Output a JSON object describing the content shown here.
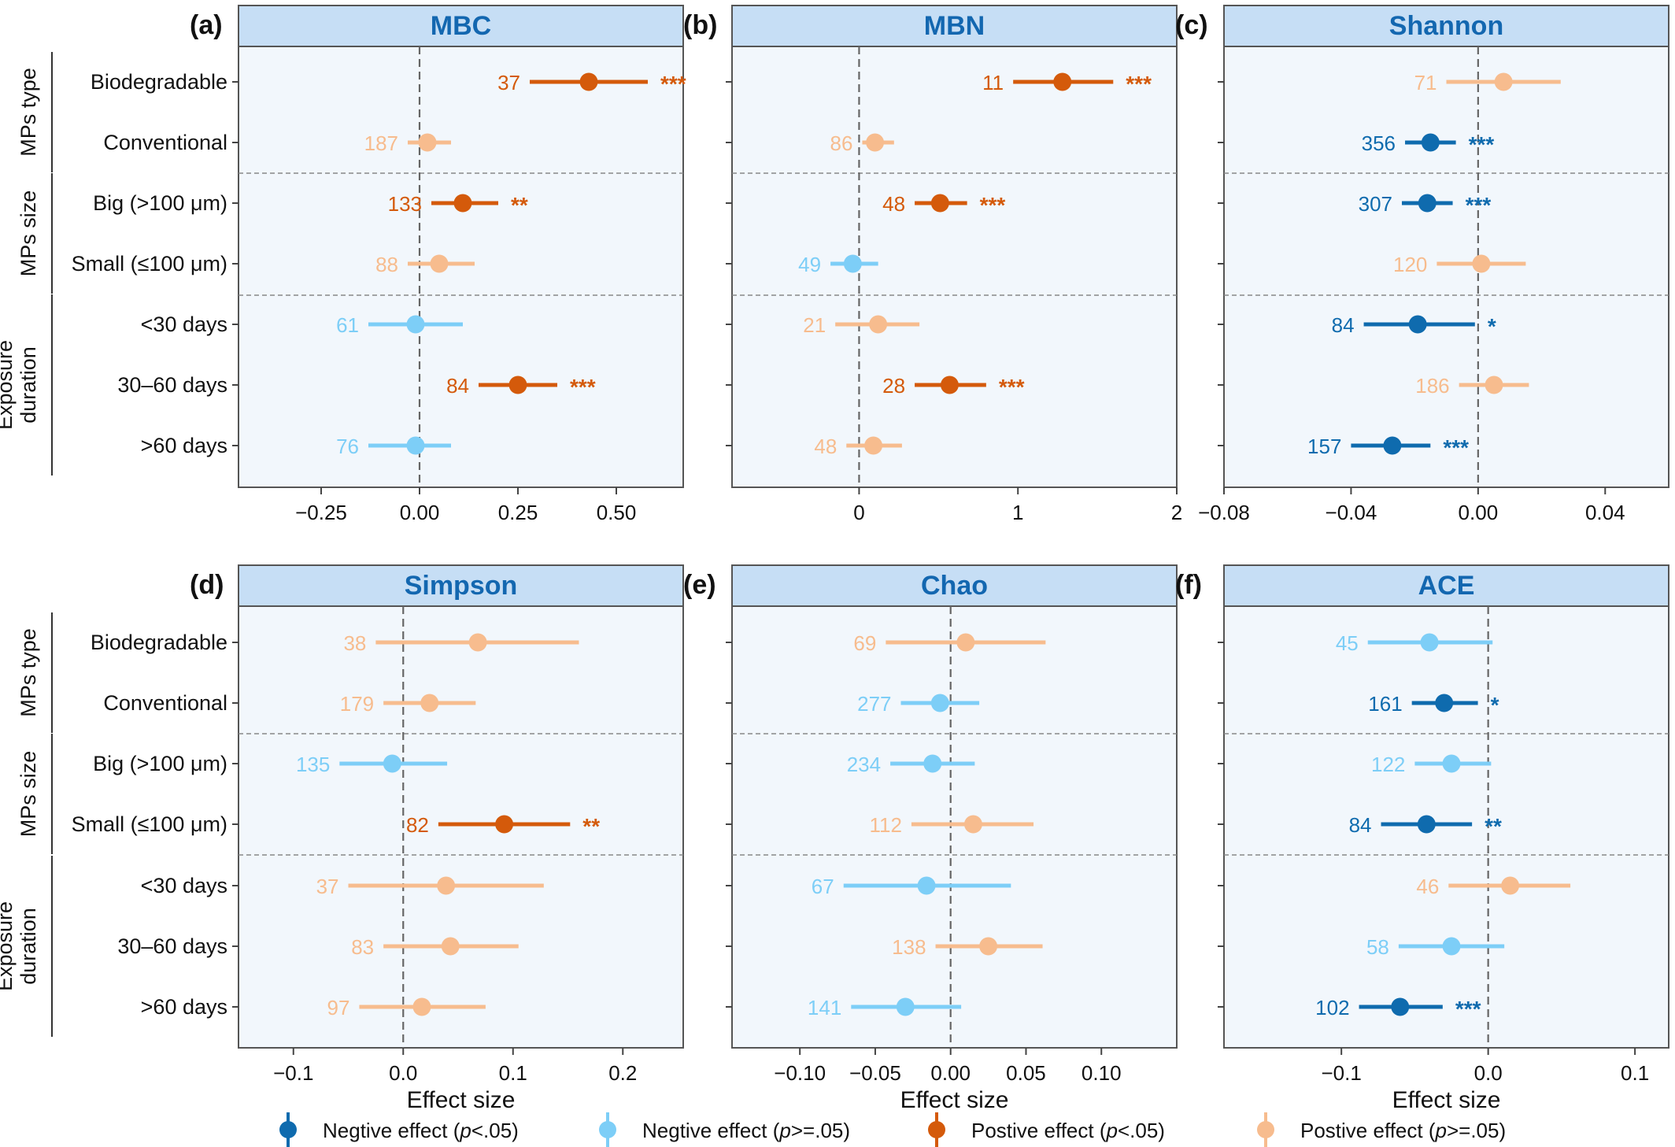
{
  "colors": {
    "neg_sig": "#0F6BAE",
    "neg_ns": "#7DCEF7",
    "pos_sig": "#D45A0B",
    "pos_ns": "#F7BC8E",
    "strip_bg": "#C6DEF5",
    "strip_text": "#1367B0",
    "panel_bg": "#F2F7FC"
  },
  "row_labels": [
    "Biodegradable",
    "Conventional",
    "Big (>100 μm)",
    "Small (≤100 μm)",
    "<30 days",
    "30–60 days",
    ">60 days"
  ],
  "group_labels": [
    {
      "lines": [
        "MPs type"
      ],
      "rows": [
        0,
        1
      ]
    },
    {
      "lines": [
        "MPs size"
      ],
      "rows": [
        2,
        3
      ]
    },
    {
      "lines": [
        "Exposure",
        "duration"
      ],
      "rows": [
        4,
        5,
        6
      ]
    }
  ],
  "x_axis_title": "Effect size",
  "legend": [
    {
      "label": "Negtive effect (",
      "italic": "p",
      "suffix": "<.05)",
      "category": "neg_sig"
    },
    {
      "label": "Negtive effect (",
      "italic": "p",
      "suffix": ">=.05)",
      "category": "neg_ns"
    },
    {
      "label": "Postive effect (",
      "italic": "p",
      "suffix": "<.05)",
      "category": "pos_sig"
    },
    {
      "label": "Postive effect (",
      "italic": "p",
      "suffix": ">=.05)",
      "category": "pos_ns"
    }
  ],
  "chart_data": [
    {
      "type": "scatter",
      "tag": "(a)",
      "title": "MBC",
      "xlim": [
        -0.46,
        0.67
      ],
      "xticks": [
        -0.25,
        0.0,
        0.25,
        0.5
      ],
      "xtick_labels": [
        "−0.25",
        "0.00",
        "0.25",
        "0.50"
      ],
      "show_xtitle": false,
      "points": [
        {
          "row": "Biodegradable",
          "estimate": 0.43,
          "ci": [
            0.28,
            0.58
          ],
          "n": "37",
          "sig": "***",
          "category": "pos_sig"
        },
        {
          "row": "Conventional",
          "estimate": 0.02,
          "ci": [
            -0.03,
            0.08
          ],
          "n": "187",
          "sig": "",
          "category": "pos_ns"
        },
        {
          "row": "Big (>100 μm)",
          "estimate": 0.11,
          "ci": [
            0.03,
            0.2
          ],
          "n": "133",
          "sig": "**",
          "category": "pos_sig"
        },
        {
          "row": "Small (≤100 μm)",
          "estimate": 0.05,
          "ci": [
            -0.03,
            0.14
          ],
          "n": "88",
          "sig": "",
          "category": "pos_ns"
        },
        {
          "row": "<30 days",
          "estimate": -0.01,
          "ci": [
            -0.13,
            0.11
          ],
          "n": "61",
          "sig": "",
          "category": "neg_ns"
        },
        {
          "row": "30–60 days",
          "estimate": 0.25,
          "ci": [
            0.15,
            0.35
          ],
          "n": "84",
          "sig": "***",
          "category": "pos_sig"
        },
        {
          "row": ">60 days",
          "estimate": -0.01,
          "ci": [
            -0.13,
            0.08
          ],
          "n": "76",
          "sig": "",
          "category": "neg_ns"
        }
      ]
    },
    {
      "type": "scatter",
      "tag": "(b)",
      "title": "MBN",
      "xlim": [
        -0.8,
        2.0
      ],
      "xticks": [
        0,
        1,
        2
      ],
      "xtick_labels": [
        "0",
        "1",
        "2"
      ],
      "show_xtitle": false,
      "points": [
        {
          "row": "Biodegradable",
          "estimate": 1.28,
          "ci": [
            0.97,
            1.6
          ],
          "n": "11",
          "sig": "***",
          "category": "pos_sig"
        },
        {
          "row": "Conventional",
          "estimate": 0.1,
          "ci": [
            0.02,
            0.22
          ],
          "n": "86",
          "sig": "",
          "category": "pos_ns"
        },
        {
          "row": "Big (>100 μm)",
          "estimate": 0.51,
          "ci": [
            0.35,
            0.68
          ],
          "n": "48",
          "sig": "***",
          "category": "pos_sig"
        },
        {
          "row": "Small (≤100 μm)",
          "estimate": -0.04,
          "ci": [
            -0.18,
            0.12
          ],
          "n": "49",
          "sig": "",
          "category": "neg_ns"
        },
        {
          "row": "<30 days",
          "estimate": 0.12,
          "ci": [
            -0.15,
            0.38
          ],
          "n": "21",
          "sig": "",
          "category": "pos_ns"
        },
        {
          "row": "30–60 days",
          "estimate": 0.57,
          "ci": [
            0.35,
            0.8
          ],
          "n": "28",
          "sig": "***",
          "category": "pos_sig"
        },
        {
          "row": ">60 days",
          "estimate": 0.09,
          "ci": [
            -0.08,
            0.27
          ],
          "n": "48",
          "sig": "",
          "category": "pos_ns"
        }
      ]
    },
    {
      "type": "scatter",
      "tag": "(c)",
      "title": "Shannon",
      "xlim": [
        -0.08,
        0.06
      ],
      "xticks": [
        -0.08,
        -0.04,
        0.0,
        0.04
      ],
      "xtick_labels": [
        "−0.08",
        "−0.04",
        "0.00",
        "0.04"
      ],
      "show_xtitle": false,
      "points": [
        {
          "row": "Biodegradable",
          "estimate": 0.008,
          "ci": [
            -0.01,
            0.026
          ],
          "n": "71",
          "sig": "",
          "category": "pos_ns"
        },
        {
          "row": "Conventional",
          "estimate": -0.015,
          "ci": [
            -0.023,
            -0.007
          ],
          "n": "356",
          "sig": "***",
          "category": "neg_sig"
        },
        {
          "row": "Big (>100 μm)",
          "estimate": -0.016,
          "ci": [
            -0.024,
            -0.008
          ],
          "n": "307",
          "sig": "***",
          "category": "neg_sig"
        },
        {
          "row": "Small (≤100 μm)",
          "estimate": 0.001,
          "ci": [
            -0.013,
            0.015
          ],
          "n": "120",
          "sig": "",
          "category": "pos_ns"
        },
        {
          "row": "<30 days",
          "estimate": -0.019,
          "ci": [
            -0.036,
            -0.001
          ],
          "n": "84",
          "sig": "*",
          "category": "neg_sig"
        },
        {
          "row": "30–60 days",
          "estimate": 0.005,
          "ci": [
            -0.006,
            0.016
          ],
          "n": "186",
          "sig": "",
          "category": "pos_ns"
        },
        {
          "row": ">60 days",
          "estimate": -0.027,
          "ci": [
            -0.04,
            -0.015
          ],
          "n": "157",
          "sig": "***",
          "category": "neg_sig"
        }
      ]
    },
    {
      "type": "scatter",
      "tag": "(d)",
      "title": "Simpson",
      "xlim": [
        -0.15,
        0.255
      ],
      "xticks": [
        -0.1,
        0.0,
        0.1,
        0.2
      ],
      "xtick_labels": [
        "−0.1",
        "0.0",
        "0.1",
        "0.2"
      ],
      "show_xtitle": true,
      "points": [
        {
          "row": "Biodegradable",
          "estimate": 0.068,
          "ci": [
            -0.025,
            0.16
          ],
          "n": "38",
          "sig": "",
          "category": "pos_ns"
        },
        {
          "row": "Conventional",
          "estimate": 0.024,
          "ci": [
            -0.018,
            0.066
          ],
          "n": "179",
          "sig": "",
          "category": "pos_ns"
        },
        {
          "row": "Big (>100 μm)",
          "estimate": -0.01,
          "ci": [
            -0.058,
            0.04
          ],
          "n": "135",
          "sig": "",
          "category": "neg_ns"
        },
        {
          "row": "Small (≤100 μm)",
          "estimate": 0.092,
          "ci": [
            0.032,
            0.152
          ],
          "n": "82",
          "sig": "**",
          "category": "pos_sig"
        },
        {
          "row": "<30 days",
          "estimate": 0.039,
          "ci": [
            -0.05,
            0.128
          ],
          "n": "37",
          "sig": "",
          "category": "pos_ns"
        },
        {
          "row": "30–60 days",
          "estimate": 0.043,
          "ci": [
            -0.018,
            0.105
          ],
          "n": "83",
          "sig": "",
          "category": "pos_ns"
        },
        {
          "row": ">60 days",
          "estimate": 0.017,
          "ci": [
            -0.04,
            0.075
          ],
          "n": "97",
          "sig": "",
          "category": "pos_ns"
        }
      ]
    },
    {
      "type": "scatter",
      "tag": "(e)",
      "title": "Chao",
      "xlim": [
        -0.145,
        0.15
      ],
      "xticks": [
        -0.1,
        -0.05,
        0.0,
        0.05,
        0.1
      ],
      "xtick_labels": [
        "−0.10",
        "−0.05",
        "0.00",
        "0.05",
        "0.10"
      ],
      "show_xtitle": true,
      "points": [
        {
          "row": "Biodegradable",
          "estimate": 0.01,
          "ci": [
            -0.043,
            0.063
          ],
          "n": "69",
          "sig": "",
          "category": "pos_ns"
        },
        {
          "row": "Conventional",
          "estimate": -0.007,
          "ci": [
            -0.033,
            0.019
          ],
          "n": "277",
          "sig": "",
          "category": "neg_ns"
        },
        {
          "row": "Big (>100 μm)",
          "estimate": -0.012,
          "ci": [
            -0.04,
            0.016
          ],
          "n": "234",
          "sig": "",
          "category": "neg_ns"
        },
        {
          "row": "Small (≤100 μm)",
          "estimate": 0.015,
          "ci": [
            -0.026,
            0.055
          ],
          "n": "112",
          "sig": "",
          "category": "pos_ns"
        },
        {
          "row": "<30 days",
          "estimate": -0.016,
          "ci": [
            -0.071,
            0.04
          ],
          "n": "67",
          "sig": "",
          "category": "neg_ns"
        },
        {
          "row": "30–60 days",
          "estimate": 0.025,
          "ci": [
            -0.01,
            0.061
          ],
          "n": "138",
          "sig": "",
          "category": "pos_ns"
        },
        {
          "row": ">60 days",
          "estimate": -0.03,
          "ci": [
            -0.066,
            0.007
          ],
          "n": "141",
          "sig": "",
          "category": "neg_ns"
        }
      ]
    },
    {
      "type": "scatter",
      "tag": "(f)",
      "title": "ACE",
      "xlim": [
        -0.18,
        0.123
      ],
      "xticks": [
        -0.1,
        0.0,
        0.1
      ],
      "xtick_labels": [
        "−0.1",
        "0.0",
        "0.1"
      ],
      "show_xtitle": true,
      "points": [
        {
          "row": "Biodegradable",
          "estimate": -0.04,
          "ci": [
            -0.082,
            0.003
          ],
          "n": "45",
          "sig": "",
          "category": "neg_ns"
        },
        {
          "row": "Conventional",
          "estimate": -0.03,
          "ci": [
            -0.052,
            -0.007
          ],
          "n": "161",
          "sig": "*",
          "category": "neg_sig"
        },
        {
          "row": "Big (>100 μm)",
          "estimate": -0.025,
          "ci": [
            -0.05,
            0.002
          ],
          "n": "122",
          "sig": "",
          "category": "neg_ns"
        },
        {
          "row": "Small (≤100 μm)",
          "estimate": -0.042,
          "ci": [
            -0.073,
            -0.011
          ],
          "n": "84",
          "sig": "**",
          "category": "neg_sig"
        },
        {
          "row": "<30 days",
          "estimate": 0.015,
          "ci": [
            -0.027,
            0.056
          ],
          "n": "46",
          "sig": "",
          "category": "pos_ns"
        },
        {
          "row": "30–60 days",
          "estimate": -0.025,
          "ci": [
            -0.061,
            0.011
          ],
          "n": "58",
          "sig": "",
          "category": "neg_ns"
        },
        {
          "row": ">60 days",
          "estimate": -0.06,
          "ci": [
            -0.088,
            -0.031
          ],
          "n": "102",
          "sig": "***",
          "category": "neg_sig"
        }
      ]
    }
  ]
}
